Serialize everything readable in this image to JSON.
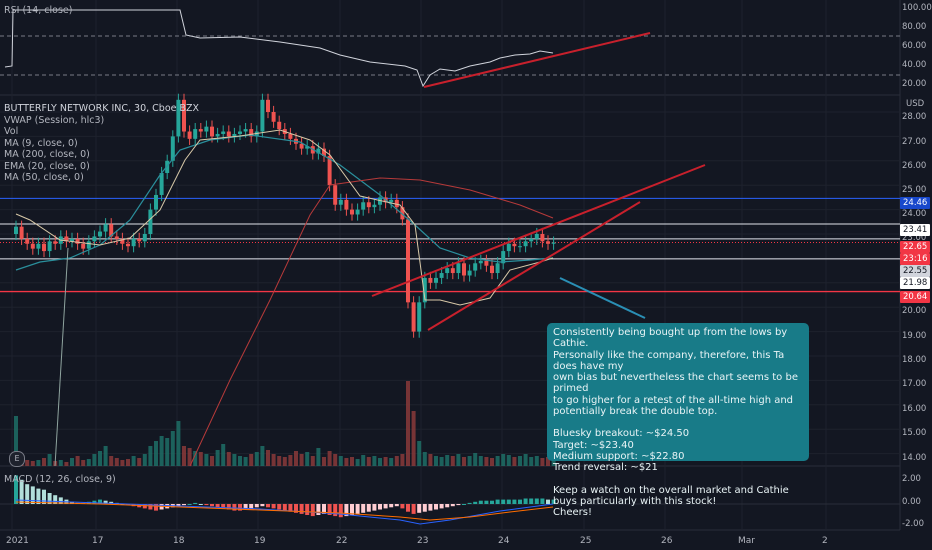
{
  "rsi": {
    "label": "RSI (14, close)",
    "scale": [
      "100.00",
      "80.00",
      "60.00",
      "40.00",
      "20.00"
    ]
  },
  "price": {
    "symbol_line": "BUTTERFLY NETWORK INC, 30, Cboe BZX",
    "indicators": [
      "VWAP (Session, hlc3)",
      "Vol",
      "MA (9, close, 0)",
      "MA (200, close, 0)",
      "EMA (20, close, 0)",
      "MA (50, close, 0)"
    ],
    "currency": "USD",
    "scale": [
      "28.00",
      "27.00",
      "26.00",
      "25.00",
      "24.00",
      "23.00",
      "21.00",
      "20.00",
      "19.00",
      "18.00",
      "17.00",
      "16.00",
      "15.00",
      "14.00"
    ],
    "tags": [
      {
        "text": "24.46",
        "bg": "#1848cc",
        "fg": "#ffffff"
      },
      {
        "text": "23.41",
        "bg": "#ffffff",
        "fg": "#131722"
      },
      {
        "text": "22.65",
        "bg": "#f23645",
        "fg": "#ffffff"
      },
      {
        "text": "23:16",
        "bg": "#f23645",
        "fg": "#ffffff"
      },
      {
        "text": "22.55",
        "bg": "#d1d4dc",
        "fg": "#131722"
      },
      {
        "text": "21.98",
        "bg": "#ffffff",
        "fg": "#131722"
      },
      {
        "text": "20.64",
        "bg": "#f23645",
        "fg": "#ffffff"
      }
    ]
  },
  "macd": {
    "label": "MACD (12, 26, close, 9)",
    "scale": [
      "2.00",
      "0.00",
      "-2.00"
    ]
  },
  "xaxis": [
    "2021",
    "17",
    "18",
    "19",
    "22",
    "23",
    "24",
    "25",
    "26",
    "Mar",
    "2"
  ],
  "events_button": "E",
  "note": {
    "p1": "Consistently being bought up from the lows by Cathie.\nPersonally like the company, therefore, this Ta does have my\nown bias but nevertheless the chart seems to be primed\nto go higher for a retest of the all-time high and\npotentially break the double top.",
    "p2": "Bluesky breakout: ~$24.50\nTarget: ~$23.40\nMedium support: ~$22.80\nTrend reversal: ~$21",
    "p3": "Keep a watch on the overall market and Cathie\nbuys particularly with this stock!\nCheers!"
  },
  "colors": {
    "up": "#26a69a",
    "down": "#ef5350",
    "bg": "#131722",
    "trend": "#c8202c",
    "vwap": "#d8c9a8",
    "ema": "#2a8f9c",
    "ma200": "#b73a3a",
    "blue_level": "#2962ff",
    "note": "#187b88"
  },
  "chart_data": {
    "type": "candlestick",
    "title": "BUTTERFLY NETWORK INC, 30, Cboe BZX",
    "ylabel": "USD",
    "ylim": [
      13.75,
      29.0
    ],
    "levels": [
      24.46,
      23.41,
      22.65,
      22.55,
      21.98,
      20.64
    ],
    "close": [
      23.3,
      22.8,
      22.6,
      22.4,
      22.6,
      22.3,
      22.7,
      22.6,
      22.9,
      22.7,
      22.8,
      22.6,
      22.4,
      22.7,
      22.9,
      23.1,
      23.4,
      22.9,
      22.8,
      22.6,
      22.5,
      22.8,
      22.7,
      23.0,
      24.0,
      24.6,
      25.5,
      26.0,
      27.0,
      28.5,
      27.2,
      26.9,
      27.3,
      27.2,
      27.4,
      27.0,
      27.1,
      27.2,
      27.0,
      27.1,
      27.2,
      27.3,
      27.0,
      27.2,
      28.5,
      28.0,
      27.6,
      27.3,
      27.1,
      26.9,
      26.7,
      26.5,
      26.6,
      26.3,
      26.5,
      26.2,
      25.0,
      24.2,
      24.4,
      24.0,
      23.8,
      24.0,
      24.3,
      24.1,
      24.2,
      24.5,
      24.3,
      24.4,
      24.1,
      23.6,
      20.2,
      19.0,
      20.2,
      21.2,
      21.0,
      21.2,
      21.4,
      21.6,
      21.4,
      21.8,
      21.3,
      21.5,
      21.8,
      21.9,
      21.7,
      21.4,
      21.8,
      22.3,
      22.6,
      22.5,
      22.5,
      22.7,
      22.8,
      23.0,
      22.7,
      22.6,
      22.65
    ]
  }
}
